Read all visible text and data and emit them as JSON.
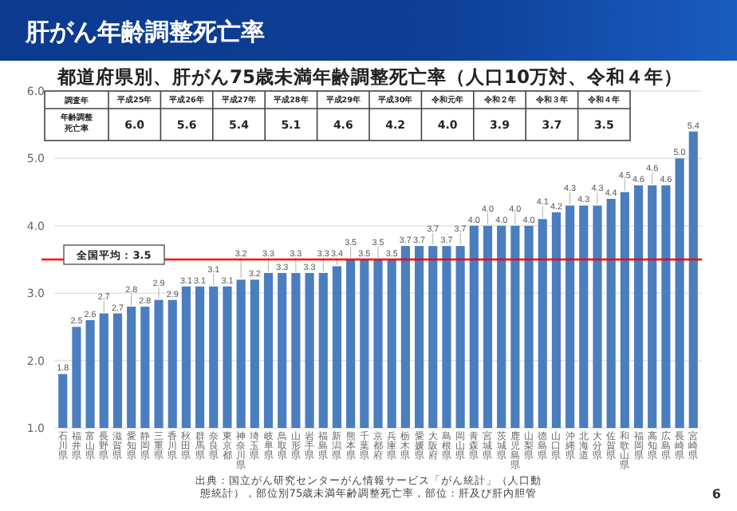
{
  "chart_data": [
    {
      "type": "bar",
      "title": "肝がん年齢調整死亡率",
      "subtitle": "都道府県別、肝がん75歳未満年齢調整死亡率（人口10万対、令和４年）",
      "categories": [
        "石川県",
        "福井県",
        "富山県",
        "長野県",
        "滋賀県",
        "愛知県",
        "静岡県",
        "三重県",
        "香川県",
        "秋田県",
        "群馬県",
        "奈良県",
        "東京都",
        "神奈川県",
        "埼玉県",
        "岐阜県",
        "鳥取県",
        "山形県",
        "岩手県",
        "福島県",
        "新潟県",
        "熊本県",
        "千葉県",
        "京都府",
        "兵庫県",
        "栃木県",
        "愛媛県",
        "大阪府",
        "島根県",
        "岡山県",
        "青森県",
        "宮城県",
        "茨城県",
        "鹿児島県",
        "山梨県",
        "徳島県",
        "山口県",
        "沖縄県",
        "北海道",
        "大分県",
        "佐賀県",
        "和歌山県",
        "福岡県",
        "高知県",
        "広島県",
        "長崎県",
        "宮崎県"
      ],
      "values": [
        1.8,
        2.5,
        2.6,
        2.7,
        2.7,
        2.8,
        2.8,
        2.9,
        2.9,
        3.1,
        3.1,
        3.1,
        3.1,
        3.2,
        3.2,
        3.3,
        3.3,
        3.3,
        3.3,
        3.3,
        3.4,
        3.5,
        3.5,
        3.5,
        3.5,
        3.7,
        3.7,
        3.7,
        3.7,
        3.7,
        4.0,
        4.0,
        4.0,
        4.0,
        4.0,
        4.1,
        4.2,
        4.3,
        4.3,
        4.3,
        4.4,
        4.5,
        4.6,
        4.6,
        4.6,
        5.0,
        5.4
      ],
      "color": "#4a7ebf",
      "ylim": [
        1,
        6
      ],
      "yticks": [
        {
          "value": 1,
          "label": "1.0"
        },
        {
          "value": 2,
          "label": "2.0"
        },
        {
          "value": 3,
          "label": "3.0"
        },
        {
          "value": 4,
          "label": "4.0"
        },
        {
          "value": 5,
          "label": "5.0"
        },
        {
          "value": 6,
          "label": "6.0"
        }
      ],
      "grid": "y",
      "value_labels": [
        "1.8",
        "2.5",
        "2.6",
        "2.7",
        "2.7",
        "2.8",
        "2.8",
        "2.9",
        "2.9",
        "3.1",
        "3.1",
        "3.1",
        "3.1",
        "3.2",
        "3.2",
        "3.3",
        "3.3",
        "3.3",
        "3.3",
        "3.3",
        "3.4",
        "3.5",
        "3.5",
        "3.5",
        "3.5",
        "3.7",
        "3.7",
        "3.7",
        "3.7",
        "3.7",
        "4.0",
        "4.0",
        "4.0",
        "4.0",
        "4.0",
        "4.1",
        "4.2",
        "4.3",
        "4.3",
        "4.3",
        "4.4",
        "4.5",
        "4.6",
        "4.6",
        "4.6",
        "5.0",
        "5.4"
      ],
      "ref_lines": [
        {
          "axis": "y",
          "value": 3.5,
          "label": "全国平均：3.5",
          "color": "#ff0000"
        }
      ],
      "annotations": [
        "出典：国立がん研究センターがん情報サービス「がん統計」（人口動態統計），部位別75歳未満年齢調整死亡率，部位：肝及び肝内胆管",
        "6"
      ]
    },
    {
      "type": "other",
      "xlabel": "調査年",
      "ylabel": "年齢調整死亡率",
      "categories": [
        "平成25年",
        "平成26年",
        "平成27年",
        "平成28年",
        "平成29年",
        "平成30年",
        "令和元年",
        "令和２年",
        "令和３年",
        "令和４年"
      ],
      "values": [
        6.0,
        5.6,
        5.4,
        5.1,
        4.6,
        4.2,
        4.0,
        3.9,
        3.7,
        3.5
      ],
      "value_labels": [
        "6.0",
        "5.6",
        "5.4",
        "5.1",
        "4.6",
        "4.2",
        "4.0",
        "3.9",
        "3.7",
        "3.5"
      ]
    }
  ]
}
